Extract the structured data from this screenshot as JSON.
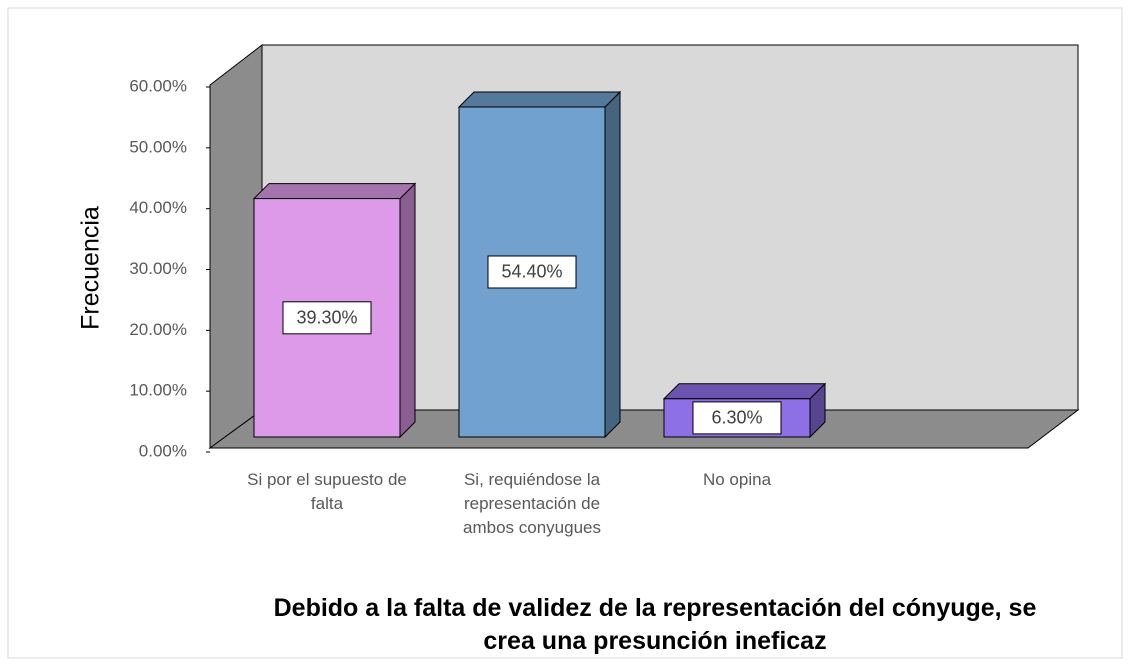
{
  "chart_data": {
    "type": "bar3d",
    "title": "Debido a la falta de validez de la representación del cónyuge, se crea una presunción ineficaz",
    "y_label": "Frecuencia",
    "categories": [
      "Si por el supuesto de falta",
      "Si, requiéndose la representación de ambos conyugues",
      "No opina"
    ],
    "values": [
      39.3,
      54.4,
      6.3
    ],
    "value_labels": [
      "39.30%",
      "54.40%",
      "6.30%"
    ],
    "colors": [
      "#dc9ae9",
      "#70a1cf",
      "#8e70e6"
    ],
    "ylim": [
      0,
      60
    ],
    "yticks": [
      {
        "value": 0,
        "label": "0.00%"
      },
      {
        "value": 10,
        "label": "10.00%"
      },
      {
        "value": 20,
        "label": "20.00%"
      },
      {
        "value": 30,
        "label": "30.00%"
      },
      {
        "value": 40,
        "label": "40.00%"
      },
      {
        "value": 50,
        "label": "50.00%"
      },
      {
        "value": 60,
        "label": "60.00%"
      }
    ]
  }
}
